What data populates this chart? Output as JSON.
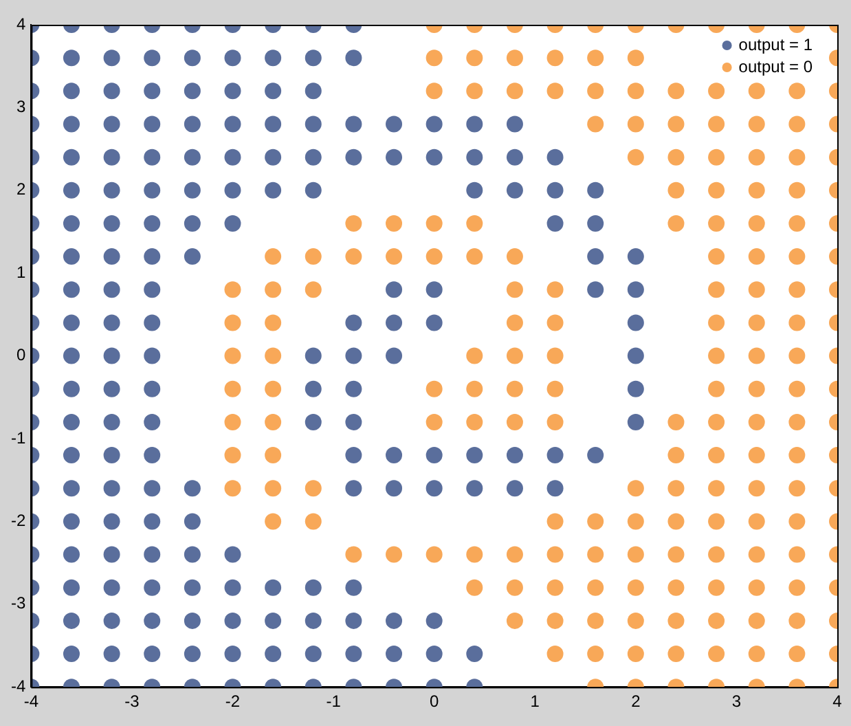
{
  "chart_data": {
    "type": "scatter",
    "xlim": [
      -4,
      4
    ],
    "xticks": [
      -4,
      -3,
      -2,
      -1,
      0,
      1,
      2,
      3,
      4
    ],
    "ylim": [
      -4,
      4
    ],
    "yticks": [
      -4,
      -3,
      -2,
      -1,
      0,
      1,
      2,
      3,
      4
    ],
    "grid": false,
    "legend": "top right",
    "marker": "circle",
    "series": [
      {
        "name": "output = 1",
        "color": "#5a6e9c",
        "x": [
          -4,
          -3.6,
          -3.2,
          -2.8,
          -2.4,
          -2,
          -1.6,
          -1.2,
          -0.8,
          -4,
          -3.6,
          -3.2,
          -2.8,
          -2.4,
          -2,
          -1.6,
          -1.2,
          -0.8,
          -4,
          -3.6,
          -3.2,
          -2.8,
          -2.4,
          -2,
          -1.6,
          -1.2,
          -4,
          -3.6,
          -3.2,
          -2.8,
          -2.4,
          -2,
          -1.6,
          -1.2,
          -0.8,
          -0.4,
          0,
          0.4,
          0.8,
          -4,
          -3.6,
          -3.2,
          -2.8,
          -2.4,
          -2,
          -1.6,
          -1.2,
          -0.8,
          -0.4,
          0,
          0.4,
          0.8,
          1.2,
          -4,
          -3.6,
          -3.2,
          -2.8,
          -2.4,
          -2,
          -1.6,
          -1.2,
          0.4,
          0.8,
          1.2,
          1.6,
          -4,
          -3.6,
          -3.2,
          -2.8,
          -2.4,
          -2,
          1.2,
          1.6,
          -4,
          -3.6,
          -3.2,
          -2.8,
          -2.4,
          1.6,
          2,
          -4,
          -3.6,
          -3.2,
          -2.8,
          -0.4,
          0,
          1.6,
          2,
          -4,
          -3.6,
          -3.2,
          -2.8,
          -0.8,
          -0.4,
          0,
          2,
          -4,
          -3.6,
          -3.2,
          -2.8,
          -1.2,
          -0.8,
          -0.4,
          2,
          -4,
          -3.6,
          -3.2,
          -2.8,
          -1.2,
          -0.8,
          2,
          -4,
          -3.6,
          -3.2,
          -2.8,
          -1.2,
          -0.8,
          2,
          -4,
          -3.6,
          -3.2,
          -2.8,
          -0.8,
          -0.4,
          0,
          0.4,
          0.8,
          1.2,
          1.6,
          -4,
          -3.6,
          -3.2,
          -2.8,
          -2.4,
          -0.8,
          -0.4,
          0,
          0.4,
          0.8,
          1.2,
          -4,
          -3.6,
          -3.2,
          -2.8,
          -2.4,
          -4,
          -3.6,
          -3.2,
          -2.8,
          -2.4,
          -2,
          -4,
          -3.6,
          -3.2,
          -2.8,
          -2.4,
          -2,
          -1.6,
          -1.2,
          -0.8,
          -4,
          -3.6,
          -3.2,
          -2.8,
          -2.4,
          -2,
          -1.6,
          -1.2,
          -0.8,
          -0.4,
          0,
          -4,
          -3.6,
          -3.2,
          -2.8,
          -2.4,
          -2,
          -1.6,
          -1.2,
          -0.8,
          -0.4,
          0,
          0.4,
          -4,
          -3.6,
          -3.2,
          -2.8,
          -2.4,
          -2,
          -1.6,
          -1.2,
          -0.8,
          -0.4,
          0,
          0.4
        ],
        "values": [
          4,
          4,
          4,
          4,
          4,
          4,
          4,
          4,
          4,
          3.6,
          3.6,
          3.6,
          3.6,
          3.6,
          3.6,
          3.6,
          3.6,
          3.6,
          3.2,
          3.2,
          3.2,
          3.2,
          3.2,
          3.2,
          3.2,
          3.2,
          2.8,
          2.8,
          2.8,
          2.8,
          2.8,
          2.8,
          2.8,
          2.8,
          2.8,
          2.8,
          2.8,
          2.8,
          2.8,
          2.4,
          2.4,
          2.4,
          2.4,
          2.4,
          2.4,
          2.4,
          2.4,
          2.4,
          2.4,
          2.4,
          2.4,
          2.4,
          2.4,
          2,
          2,
          2,
          2,
          2,
          2,
          2,
          2,
          2,
          2,
          2,
          2,
          1.6,
          1.6,
          1.6,
          1.6,
          1.6,
          1.6,
          1.6,
          1.6,
          1.2,
          1.2,
          1.2,
          1.2,
          1.2,
          1.2,
          1.2,
          0.8,
          0.8,
          0.8,
          0.8,
          0.8,
          0.8,
          0.8,
          0.8,
          0.4,
          0.4,
          0.4,
          0.4,
          0.4,
          0.4,
          0.4,
          0.4,
          0,
          0,
          0,
          0,
          0,
          0,
          0,
          0,
          -0.4,
          -0.4,
          -0.4,
          -0.4,
          -0.4,
          -0.4,
          -0.4,
          -0.8,
          -0.8,
          -0.8,
          -0.8,
          -0.8,
          -0.8,
          -0.8,
          -1.2,
          -1.2,
          -1.2,
          -1.2,
          -1.2,
          -1.2,
          -1.2,
          -1.2,
          -1.2,
          -1.2,
          -1.2,
          -1.6,
          -1.6,
          -1.6,
          -1.6,
          -1.6,
          -1.6,
          -1.6,
          -1.6,
          -1.6,
          -1.6,
          -1.6,
          -2,
          -2,
          -2,
          -2,
          -2,
          -2.4,
          -2.4,
          -2.4,
          -2.4,
          -2.4,
          -2.4,
          -2.8,
          -2.8,
          -2.8,
          -2.8,
          -2.8,
          -2.8,
          -2.8,
          -2.8,
          -2.8,
          -3.2,
          -3.2,
          -3.2,
          -3.2,
          -3.2,
          -3.2,
          -3.2,
          -3.2,
          -3.2,
          -3.2,
          -3.2,
          -3.6,
          -3.6,
          -3.6,
          -3.6,
          -3.6,
          -3.6,
          -3.6,
          -3.6,
          -3.6,
          -3.6,
          -3.6,
          -3.6,
          -4,
          -4,
          -4,
          -4,
          -4,
          -4,
          -4,
          -4,
          -4,
          -4,
          -4,
          -4
        ]
      },
      {
        "name": "output = 0",
        "color": "#f8a858",
        "x": [
          0,
          0.4,
          0.8,
          1.2,
          1.6,
          2,
          2.4,
          2.8,
          3.2,
          3.6,
          4,
          0,
          0.4,
          0.8,
          1.2,
          1.6,
          2,
          4,
          0,
          0.4,
          0.8,
          1.2,
          1.6,
          2,
          2.4,
          2.8,
          3.2,
          3.6,
          4,
          1.6,
          2,
          2.4,
          2.8,
          3.2,
          3.6,
          4,
          2,
          2.4,
          2.8,
          3.2,
          3.6,
          4,
          2.4,
          2.8,
          3.2,
          3.6,
          4,
          -0.8,
          -0.4,
          0,
          0.4,
          2.4,
          2.8,
          3.2,
          3.6,
          4,
          -1.6,
          -1.2,
          -0.8,
          -0.4,
          0,
          0.4,
          0.8,
          2.8,
          3.2,
          3.6,
          4,
          -2,
          -1.6,
          -1.2,
          0.8,
          1.2,
          2.8,
          3.2,
          3.6,
          4,
          -2,
          -1.6,
          0.8,
          1.2,
          2.8,
          3.2,
          3.6,
          4,
          -2,
          -1.6,
          0.4,
          0.8,
          1.2,
          2.8,
          3.2,
          3.6,
          4,
          -2,
          -1.6,
          0,
          0.4,
          0.8,
          1.2,
          2.8,
          3.2,
          3.6,
          4,
          -2,
          -1.6,
          0,
          0.4,
          0.8,
          1.2,
          2.4,
          2.8,
          3.2,
          3.6,
          4,
          -2,
          -1.6,
          2.4,
          2.8,
          3.2,
          3.6,
          4,
          -2,
          -1.6,
          -1.2,
          2,
          2.4,
          2.8,
          3.2,
          3.6,
          4,
          -1.6,
          -1.2,
          1.2,
          1.6,
          2,
          2.4,
          2.8,
          3.2,
          3.6,
          4,
          -0.8,
          -0.4,
          0,
          0.4,
          0.8,
          1.2,
          1.6,
          2,
          2.4,
          2.8,
          3.2,
          3.6,
          4,
          0.4,
          0.8,
          1.2,
          1.6,
          2,
          2.4,
          2.8,
          3.2,
          3.6,
          4,
          0.8,
          1.2,
          1.6,
          2,
          2.4,
          2.8,
          3.2,
          3.6,
          4,
          1.2,
          1.6,
          2,
          2.4,
          2.8,
          3.2,
          3.6,
          4,
          1.6,
          2,
          2.4,
          2.8,
          3.2,
          3.6,
          4
        ],
        "values": [
          4,
          4,
          4,
          4,
          4,
          4,
          4,
          4,
          4,
          4,
          4,
          3.6,
          3.6,
          3.6,
          3.6,
          3.6,
          3.6,
          3.6,
          3.2,
          3.2,
          3.2,
          3.2,
          3.2,
          3.2,
          3.2,
          3.2,
          3.2,
          3.2,
          3.2,
          2.8,
          2.8,
          2.8,
          2.8,
          2.8,
          2.8,
          2.8,
          2.4,
          2.4,
          2.4,
          2.4,
          2.4,
          2.4,
          2,
          2,
          2,
          2,
          2,
          1.6,
          1.6,
          1.6,
          1.6,
          1.6,
          1.6,
          1.6,
          1.6,
          1.6,
          1.2,
          1.2,
          1.2,
          1.2,
          1.2,
          1.2,
          1.2,
          1.2,
          1.2,
          1.2,
          1.2,
          0.8,
          0.8,
          0.8,
          0.8,
          0.8,
          0.8,
          0.8,
          0.8,
          0.8,
          0.4,
          0.4,
          0.4,
          0.4,
          0.4,
          0.4,
          0.4,
          0.4,
          0,
          0,
          0,
          0,
          0,
          0,
          0,
          0,
          0,
          -0.4,
          -0.4,
          -0.4,
          -0.4,
          -0.4,
          -0.4,
          -0.4,
          -0.4,
          -0.4,
          -0.4,
          -0.8,
          -0.8,
          -0.8,
          -0.8,
          -0.8,
          -0.8,
          -0.8,
          -0.8,
          -0.8,
          -0.8,
          -0.8,
          -1.2,
          -1.2,
          -1.2,
          -1.2,
          -1.2,
          -1.2,
          -1.2,
          -1.6,
          -1.6,
          -1.6,
          -1.6,
          -1.6,
          -1.6,
          -1.6,
          -1.6,
          -1.6,
          -2,
          -2,
          -2,
          -2,
          -2,
          -2,
          -2,
          -2,
          -2,
          -2,
          -2.4,
          -2.4,
          -2.4,
          -2.4,
          -2.4,
          -2.4,
          -2.4,
          -2.4,
          -2.4,
          -2.4,
          -2.4,
          -2.4,
          -2.4,
          -2.8,
          -2.8,
          -2.8,
          -2.8,
          -2.8,
          -2.8,
          -2.8,
          -2.8,
          -2.8,
          -2.8,
          -3.2,
          -3.2,
          -3.2,
          -3.2,
          -3.2,
          -3.2,
          -3.2,
          -3.2,
          -3.2,
          -3.6,
          -3.6,
          -3.6,
          -3.6,
          -3.6,
          -3.6,
          -3.6,
          -3.6,
          -4,
          -4,
          -4,
          -4,
          -4,
          -4,
          -4
        ]
      }
    ]
  }
}
